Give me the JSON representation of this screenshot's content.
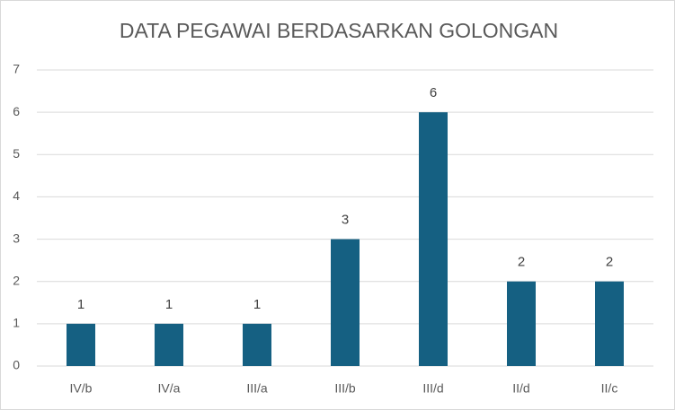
{
  "chart_data": {
    "type": "bar",
    "title": "DATA PEGAWAI BERDASARKAN GOLONGAN",
    "categories": [
      "IV/b",
      "IV/a",
      "III/a",
      "III/b",
      "III/d",
      "II/d",
      "II/c"
    ],
    "values": [
      1,
      1,
      1,
      3,
      6,
      2,
      2
    ],
    "color": "#156082",
    "ylim": [
      0,
      7
    ],
    "yticks": [
      0,
      1,
      2,
      3,
      4,
      5,
      6,
      7
    ],
    "grid": true,
    "data_labels": true
  }
}
